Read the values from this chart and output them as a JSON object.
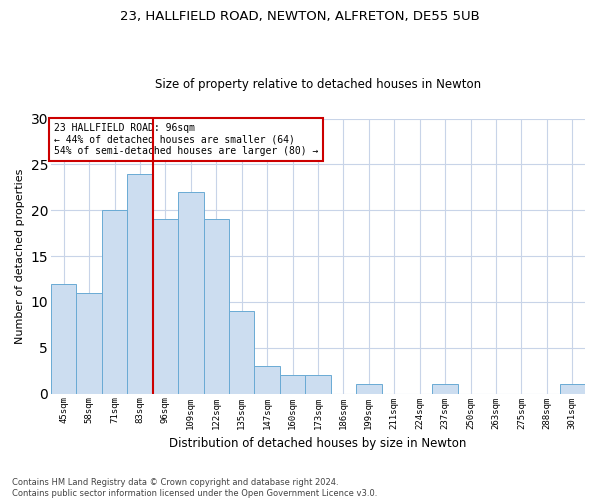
{
  "title1": "23, HALLFIELD ROAD, NEWTON, ALFRETON, DE55 5UB",
  "title2": "Size of property relative to detached houses in Newton",
  "xlabel": "Distribution of detached houses by size in Newton",
  "ylabel": "Number of detached properties",
  "categories": [
    "45sqm",
    "58sqm",
    "71sqm",
    "83sqm",
    "96sqm",
    "109sqm",
    "122sqm",
    "135sqm",
    "147sqm",
    "160sqm",
    "173sqm",
    "186sqm",
    "199sqm",
    "211sqm",
    "224sqm",
    "237sqm",
    "250sqm",
    "263sqm",
    "275sqm",
    "288sqm",
    "301sqm"
  ],
  "values": [
    12,
    11,
    20,
    24,
    19,
    22,
    19,
    9,
    3,
    2,
    2,
    0,
    1,
    0,
    0,
    1,
    0,
    0,
    0,
    0,
    1
  ],
  "bar_color": "#ccddf0",
  "bar_edge_color": "#6aaad4",
  "vline_color": "#cc0000",
  "annotation_text": "23 HALLFIELD ROAD: 96sqm\n← 44% of detached houses are smaller (64)\n54% of semi-detached houses are larger (80) →",
  "annotation_box_color": "#ffffff",
  "annotation_box_edgecolor": "#cc0000",
  "ylim": [
    0,
    30
  ],
  "yticks": [
    0,
    5,
    10,
    15,
    20,
    25,
    30
  ],
  "footer_line1": "Contains HM Land Registry data © Crown copyright and database right 2024.",
  "footer_line2": "Contains public sector information licensed under the Open Government Licence v3.0.",
  "background_color": "#ffffff",
  "grid_color": "#c8d4e8"
}
